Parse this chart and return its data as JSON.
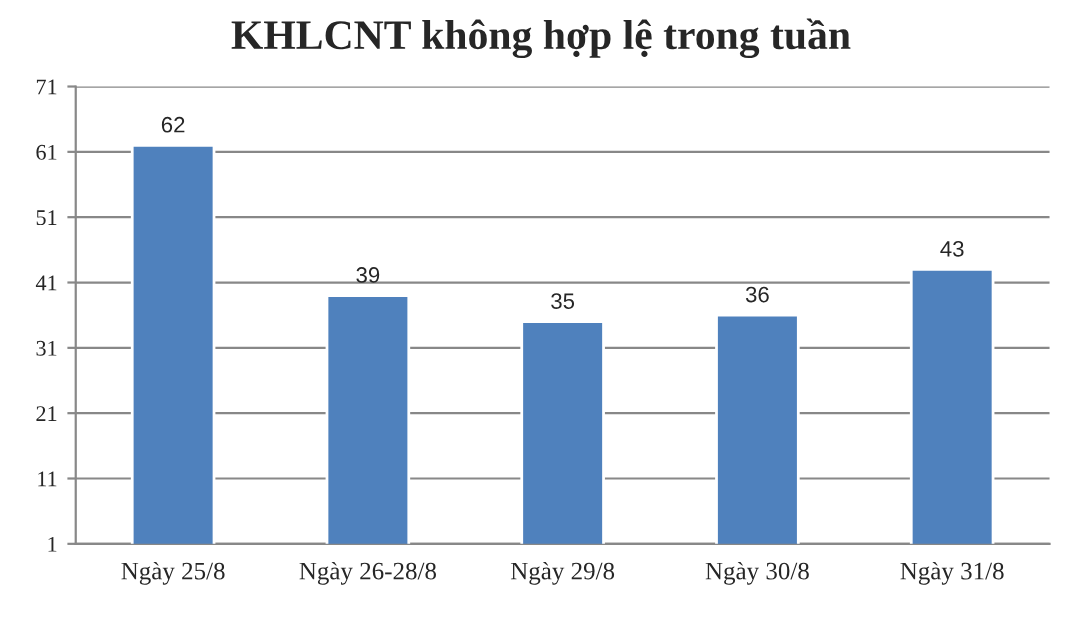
{
  "chart_data": {
    "type": "bar",
    "title": "KHLCNT không hợp lệ trong tuần",
    "categories": [
      "Ngày 25/8",
      "Ngày 26-28/8",
      "Ngày 29/8",
      "Ngày 30/8",
      "Ngày 31/8"
    ],
    "values": [
      62,
      39,
      35,
      36,
      43
    ],
    "color": "#4f81bd",
    "ylim": [
      1,
      71
    ],
    "yticks": [
      1,
      11,
      21,
      31,
      41,
      51,
      61,
      71
    ],
    "grid": "y",
    "data_labels": true,
    "legend": false
  }
}
